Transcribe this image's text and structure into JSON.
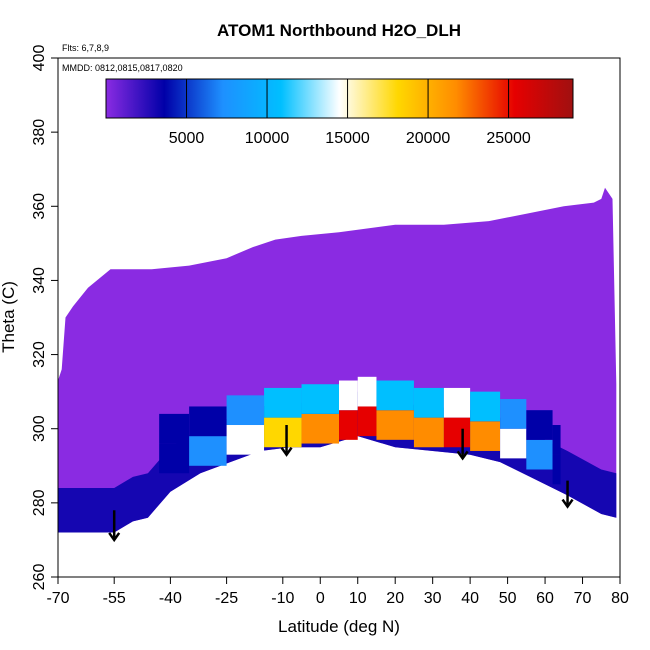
{
  "chart_data": {
    "type": "heatmap",
    "title": "ATOM1 Northbound H2O_DLH",
    "annotations": [
      "Flts: 6,7,8,9",
      "MMDD: 0812,0815,0817,0820"
    ],
    "xlabel": "Latitude (deg N)",
    "ylabel": "Theta (C)",
    "xlim": [
      -70,
      80
    ],
    "ylim": [
      260,
      400
    ],
    "x_ticks": [
      -70,
      -55,
      -40,
      -25,
      -10,
      0,
      10,
      20,
      30,
      40,
      50,
      60,
      70,
      80
    ],
    "x_tick_labels": [
      "-70",
      "-55",
      "-40",
      "-25",
      "-10",
      "0",
      "10",
      "20",
      "30",
      "40",
      "50",
      "60",
      "70",
      "80"
    ],
    "y_ticks": [
      260,
      280,
      300,
      320,
      340,
      360,
      380,
      400
    ],
    "y_tick_labels": [
      "260",
      "280",
      "300",
      "320",
      "340",
      "360",
      "380",
      "400"
    ],
    "colorbar": {
      "range": [
        0,
        29000
      ],
      "ticks": [
        5000,
        10000,
        15000,
        20000,
        25000
      ],
      "tick_labels": [
        "5000",
        "10000",
        "15000",
        "20000",
        "25000"
      ],
      "colors": [
        "#8a2be2",
        "#0000a8",
        "#1e90ff",
        "#00bfff",
        "#ffffff",
        "#ffd700",
        "#ff8c00",
        "#e60000",
        "#a01010"
      ]
    },
    "region_top": [
      {
        "lat": -70,
        "theta": 313
      },
      {
        "lat": -69,
        "theta": 316
      },
      {
        "lat": -68,
        "theta": 330
      },
      {
        "lat": -66,
        "theta": 333
      },
      {
        "lat": -62,
        "theta": 338
      },
      {
        "lat": -56,
        "theta": 343
      },
      {
        "lat": -50,
        "theta": 343
      },
      {
        "lat": -45,
        "theta": 343
      },
      {
        "lat": -35,
        "theta": 344
      },
      {
        "lat": -25,
        "theta": 346
      },
      {
        "lat": -18,
        "theta": 349
      },
      {
        "lat": -12,
        "theta": 351
      },
      {
        "lat": -5,
        "theta": 352
      },
      {
        "lat": 5,
        "theta": 353
      },
      {
        "lat": 20,
        "theta": 355
      },
      {
        "lat": 33,
        "theta": 355
      },
      {
        "lat": 45,
        "theta": 356
      },
      {
        "lat": 55,
        "theta": 358
      },
      {
        "lat": 65,
        "theta": 360
      },
      {
        "lat": 73,
        "theta": 361
      },
      {
        "lat": 75,
        "theta": 362
      },
      {
        "lat": 76,
        "theta": 365
      },
      {
        "lat": 78,
        "theta": 362
      },
      {
        "lat": 79,
        "theta": 312
      }
    ],
    "region_bottom": [
      {
        "lat": -70,
        "theta": 272
      },
      {
        "lat": -55,
        "theta": 272
      },
      {
        "lat": -50,
        "theta": 275
      },
      {
        "lat": -46,
        "theta": 276
      },
      {
        "lat": -40,
        "theta": 283
      },
      {
        "lat": -32,
        "theta": 288
      },
      {
        "lat": -24,
        "theta": 291
      },
      {
        "lat": -16,
        "theta": 294
      },
      {
        "lat": -8,
        "theta": 295
      },
      {
        "lat": 0,
        "theta": 295
      },
      {
        "lat": 10,
        "theta": 298
      },
      {
        "lat": 20,
        "theta": 295
      },
      {
        "lat": 30,
        "theta": 294
      },
      {
        "lat": 40,
        "theta": 293
      },
      {
        "lat": 48,
        "theta": 291
      },
      {
        "lat": 56,
        "theta": 287
      },
      {
        "lat": 66,
        "theta": 282
      },
      {
        "lat": 75,
        "theta": 277
      },
      {
        "lat": 79,
        "theta": 276
      }
    ],
    "moist_layer": [
      {
        "lat": -43,
        "theta_base": 288,
        "value": 4000
      },
      {
        "lat": -35,
        "theta_base": 290,
        "value": 9000
      },
      {
        "lat": -25,
        "theta_base": 293,
        "value": 15000
      },
      {
        "lat": -15,
        "theta_base": 295,
        "value": 19000
      },
      {
        "lat": -5,
        "theta_base": 296,
        "value": 21000
      },
      {
        "lat": 5,
        "theta_base": 297,
        "value": 24000
      },
      {
        "lat": 10,
        "theta_base": 298,
        "value": 27000
      },
      {
        "lat": 15,
        "theta_base": 297,
        "value": 23000
      },
      {
        "lat": 25,
        "theta_base": 295,
        "value": 21000
      },
      {
        "lat": 33,
        "theta_base": 295,
        "value": 24000
      },
      {
        "lat": 40,
        "theta_base": 294,
        "value": 21000
      },
      {
        "lat": 48,
        "theta_base": 292,
        "value": 16000
      },
      {
        "lat": 55,
        "theta_base": 289,
        "value": 9000
      },
      {
        "lat": 62,
        "theta_base": 285,
        "value": 5000
      }
    ],
    "arrows": [
      {
        "lat": -55,
        "theta_start": 278,
        "theta_end": 270
      },
      {
        "lat": -9,
        "theta_start": 301,
        "theta_end": 293
      },
      {
        "lat": 38,
        "theta_start": 300,
        "theta_end": 292
      },
      {
        "lat": 66,
        "theta_start": 286,
        "theta_end": 279
      }
    ]
  }
}
